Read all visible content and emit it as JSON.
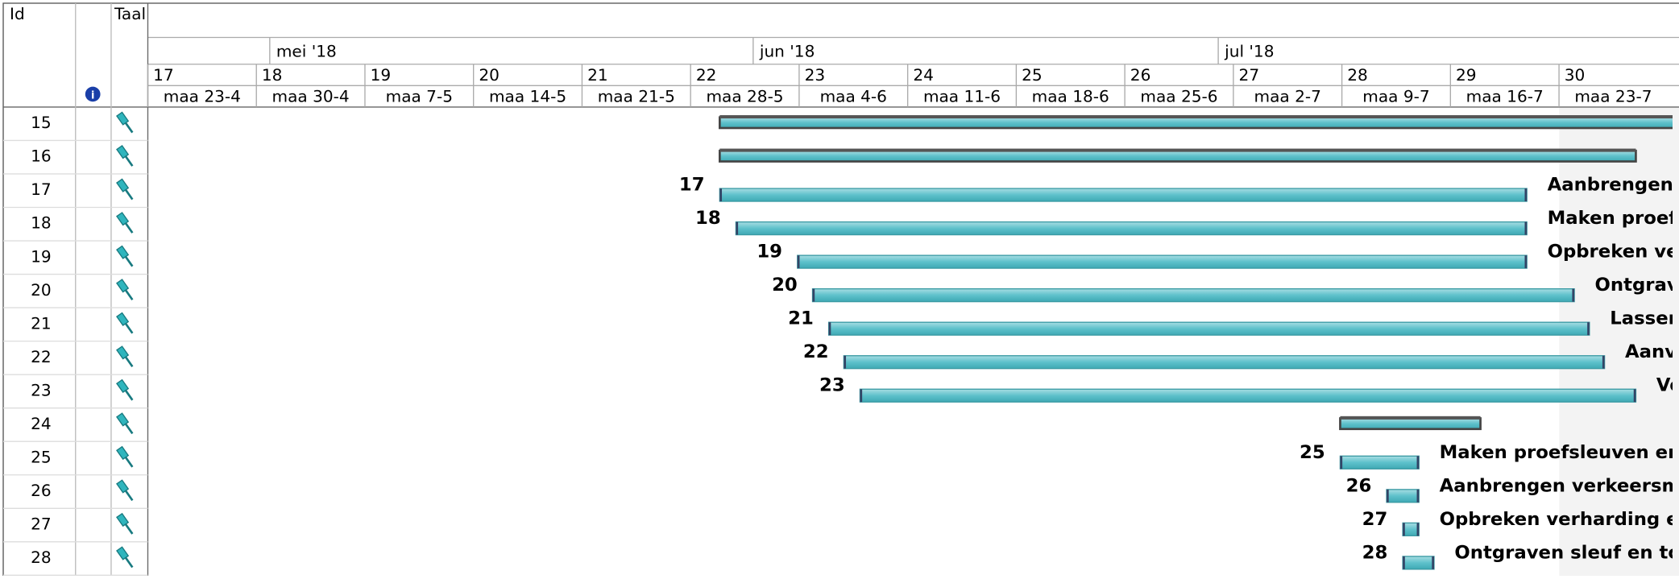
{
  "header": {
    "id_label": "Id",
    "task_label": "Taal"
  },
  "timeline": {
    "months": [
      "mei '18",
      "jun '18",
      "jul '18"
    ],
    "weeks": [
      "17",
      "18",
      "19",
      "20",
      "21",
      "22",
      "23",
      "24",
      "25",
      "26",
      "27",
      "28",
      "29",
      "30"
    ],
    "dates": [
      "maa 23-4",
      "maa 30-4",
      "maa 7-5",
      "maa 14-5",
      "maa 21-5",
      "maa 28-5",
      "maa 4-6",
      "maa 11-6",
      "maa 18-6",
      "maa 25-6",
      "maa 2-7",
      "maa 9-7",
      "maa 16-7",
      "maa 23-7"
    ]
  },
  "rows": [
    {
      "id": 15
    },
    {
      "id": 16
    },
    {
      "id": 17,
      "bar_id": "17",
      "bar_text": "Aanbrengen,"
    },
    {
      "id": 18,
      "bar_id": "18",
      "bar_text": "Maken proef"
    },
    {
      "id": 19,
      "bar_id": "19",
      "bar_text": "Opbreken ve"
    },
    {
      "id": 20,
      "bar_id": "20",
      "bar_text": "Ontgrav"
    },
    {
      "id": 21,
      "bar_id": "21",
      "bar_text": "Lassen"
    },
    {
      "id": 22,
      "bar_id": "22",
      "bar_text": "Aanv"
    },
    {
      "id": 23,
      "bar_id": "23",
      "bar_text": "Vo"
    },
    {
      "id": 24
    },
    {
      "id": 25,
      "bar_id": "25",
      "bar_text": "Maken proefsleuven en"
    },
    {
      "id": 26,
      "bar_id": "26",
      "bar_text": "Aanbrengen verkeersm"
    },
    {
      "id": 27,
      "bar_id": "27",
      "bar_text": "Opbreken verharding e"
    },
    {
      "id": 28,
      "bar_id": "28",
      "bar_text": "Ontgraven sleuf en to"
    }
  ]
}
